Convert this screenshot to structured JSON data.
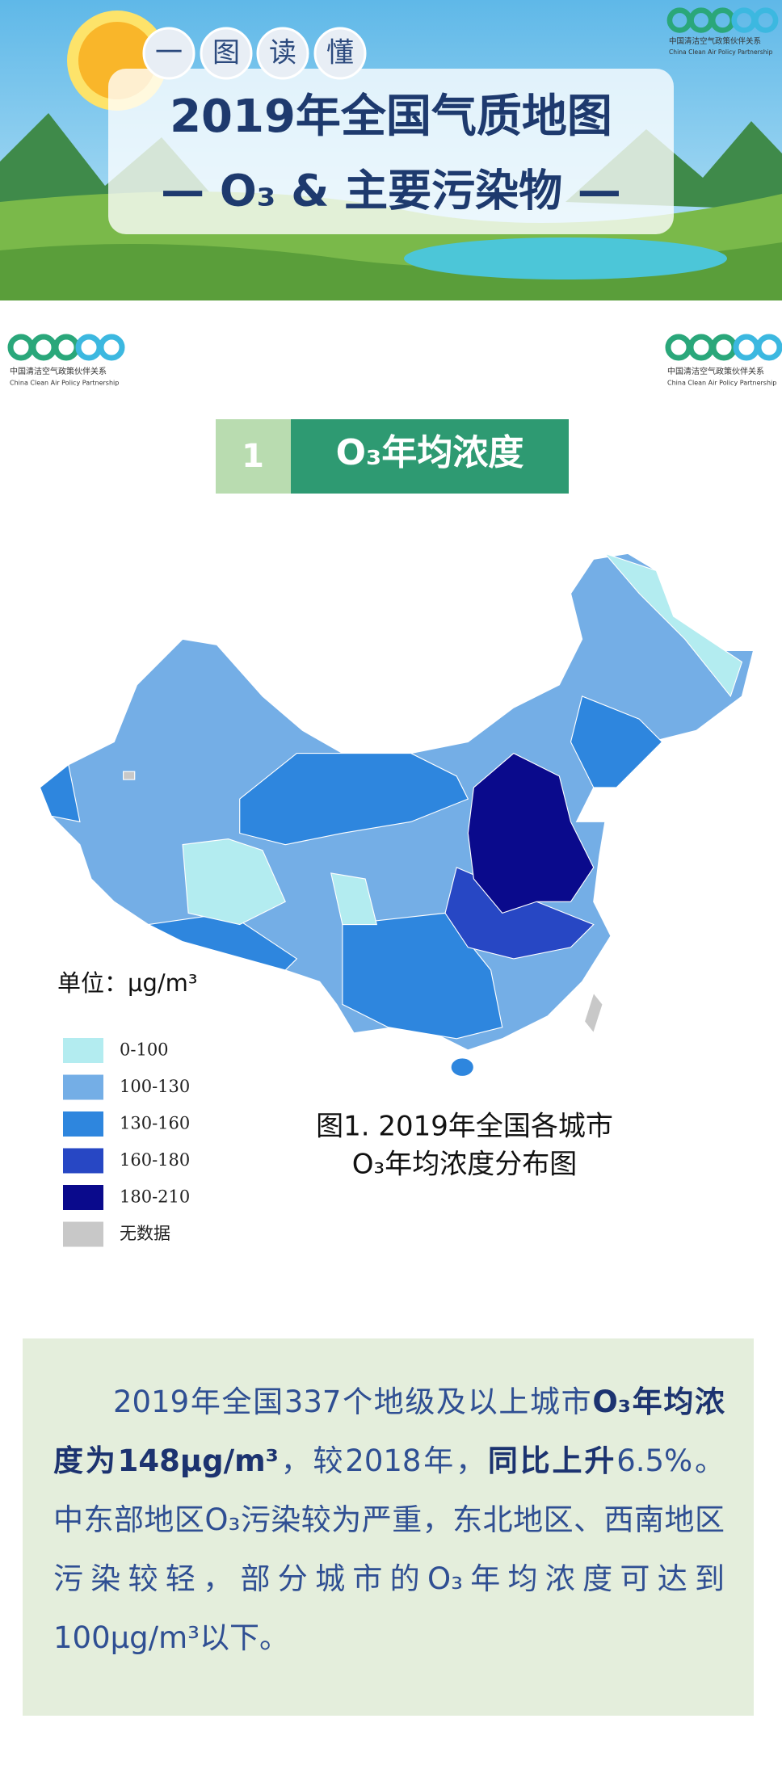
{
  "header": {
    "badges": [
      "一",
      "图",
      "读",
      "懂"
    ],
    "title": "2019年全国气质地图",
    "subtitle": "— O₃ & 主要污染物 —"
  },
  "logo": {
    "name_cn": "中国清洁空气政策伙伴关系",
    "name_en": "China Clean Air Policy Partnership"
  },
  "section": {
    "number": "1",
    "title": "O₃年均浓度"
  },
  "map": {
    "unit": "单位：μg/m³",
    "legend": [
      {
        "label": "0-100",
        "color": "#b3ecf0"
      },
      {
        "label": "100-130",
        "color": "#74aee6"
      },
      {
        "label": "130-160",
        "color": "#2e86de"
      },
      {
        "label": "160-180",
        "color": "#2747c4"
      },
      {
        "label": "180-210",
        "color": "#0a0a8c"
      },
      {
        "label": "无数据",
        "color": "#c8c8c8"
      }
    ],
    "caption": [
      "图1. 2019年全国各城市",
      "O₃年均浓度分布图"
    ]
  },
  "summary": {
    "runs": [
      {
        "text": "2019年全国337个地级及以上城市",
        "bold": false
      },
      {
        "text": "O₃年均浓度为148μg/m³",
        "bold": true
      },
      {
        "text": "，较2018年，",
        "bold": false
      },
      {
        "text": "同比上升",
        "bold": true
      },
      {
        "text": "6.5%。中东部地区O₃污染较为严重，东北地区、西南地区污染较轻，部分城市的O₃年均浓度可达到100μg/m³以下。",
        "bold": false
      }
    ]
  }
}
